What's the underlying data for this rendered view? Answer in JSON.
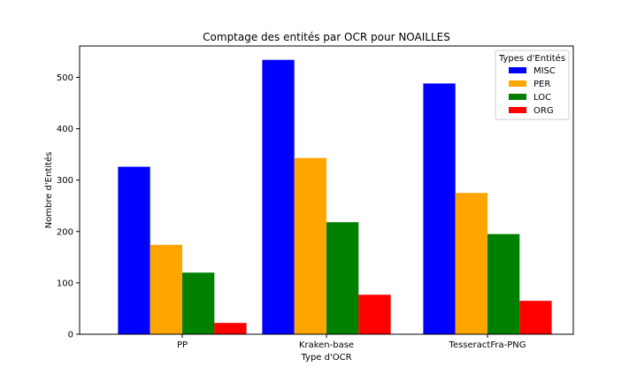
{
  "chart_data": {
    "type": "bar",
    "title": "Comptage des entités par OCR pour NOAILLES",
    "xlabel": "Type d'OCR",
    "ylabel": "Nombre d'Entités",
    "categories": [
      "PP",
      "Kraken-base",
      "TesseractFra-PNG"
    ],
    "series": [
      {
        "name": "MISC",
        "color": "#0000ff",
        "values": [
          326,
          534,
          488
        ]
      },
      {
        "name": "PER",
        "color": "#ffa500",
        "values": [
          174,
          343,
          275
        ]
      },
      {
        "name": "LOC",
        "color": "#008000",
        "values": [
          120,
          218,
          195
        ]
      },
      {
        "name": "ORG",
        "color": "#ff0000",
        "values": [
          22,
          77,
          65
        ]
      }
    ],
    "ylim": [
      0,
      561
    ],
    "yticks": [
      0,
      100,
      200,
      300,
      400,
      500
    ],
    "grid": false,
    "legend": {
      "title": "Types d'Entités",
      "position": "top-right"
    }
  }
}
